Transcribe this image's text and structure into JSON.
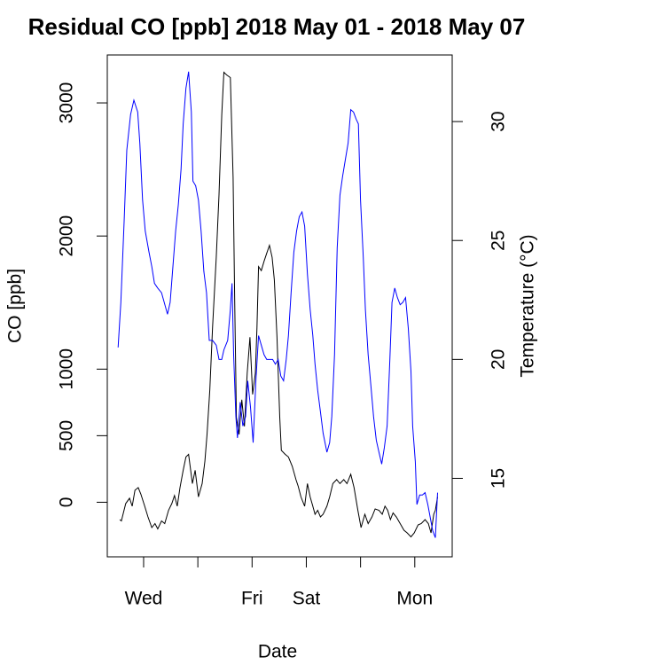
{
  "chart_data": {
    "type": "line",
    "title": "Residual CO [ppb] 2018 May 01 - 2018 May 07",
    "xlabel": "Date",
    "ylabel": "CO [ppb]",
    "y2label": "Temperature (°C)",
    "xlim": [
      1.33,
      7.69
    ],
    "xticks": [
      {
        "value": 2,
        "label": "Wed"
      },
      {
        "value": 3,
        "label": null
      },
      {
        "value": 4,
        "label": "Fri"
      },
      {
        "value": 5,
        "label": "Sat"
      },
      {
        "value": 6,
        "label": null
      },
      {
        "value": 7,
        "label": "Mon"
      }
    ],
    "ylim": [
      -410,
      3360
    ],
    "yticks": [
      0,
      500,
      1000,
      2000,
      3000
    ],
    "y2lim": [
      11.7,
      32.8
    ],
    "y2ticks": [
      15,
      20,
      25,
      30
    ],
    "y2color": "#0000ff",
    "series": [
      {
        "color": "#000000",
        "x": [
          1.56,
          1.59,
          1.67,
          1.74,
          1.79,
          1.84,
          1.9,
          1.95,
          2.02,
          2.08,
          2.15,
          2.21,
          2.26,
          2.33,
          2.39,
          2.46,
          2.52,
          2.57,
          2.62,
          2.67,
          2.73,
          2.78,
          2.83,
          2.9,
          2.95,
          3.01,
          3.08,
          3.13,
          3.17,
          3.22,
          3.27,
          3.34,
          3.39,
          3.44,
          3.48,
          3.53,
          3.6,
          3.65,
          3.68,
          3.71,
          3.76,
          3.81,
          3.86,
          3.91,
          3.96,
          4.01,
          4.06,
          4.09,
          4.12,
          4.17,
          4.22,
          4.27,
          4.32,
          4.37,
          4.41,
          4.46,
          4.51,
          4.54,
          4.61,
          4.67,
          4.74,
          4.81,
          4.85,
          4.9,
          4.97,
          5.02,
          5.07,
          5.12,
          5.16,
          5.21,
          5.26,
          5.31,
          5.38,
          5.43,
          5.49,
          5.56,
          5.62,
          5.69,
          5.75,
          5.82,
          5.88,
          5.95,
          6.01,
          6.08,
          6.14,
          6.21,
          6.27,
          6.34,
          6.4,
          6.45,
          6.5,
          6.55,
          6.6,
          6.66,
          6.73,
          6.8,
          6.86,
          6.93,
          6.99,
          7.06,
          7.12,
          7.19,
          7.25,
          7.3,
          7.35,
          7.38,
          7.42
        ],
        "values": [
          -130,
          -140,
          -10,
          30,
          -30,
          90,
          110,
          60,
          -30,
          -110,
          -190,
          -160,
          -200,
          -140,
          -160,
          -60,
          -10,
          50,
          -30,
          110,
          240,
          340,
          360,
          140,
          240,
          40,
          140,
          310,
          510,
          840,
          1310,
          1840,
          2310,
          2910,
          3230,
          3210,
          3190,
          2440,
          1510,
          640,
          510,
          770,
          570,
          970,
          1240,
          810,
          970,
          1310,
          1770,
          1740,
          1810,
          1870,
          1930,
          1840,
          1670,
          1240,
          640,
          390,
          360,
          340,
          270,
          170,
          120,
          40,
          -30,
          140,
          40,
          -30,
          -90,
          -60,
          -110,
          -90,
          -30,
          40,
          140,
          170,
          140,
          170,
          140,
          210,
          110,
          -60,
          -190,
          -90,
          -160,
          -110,
          -50,
          -60,
          -90,
          -30,
          -60,
          -130,
          -80,
          -110,
          -160,
          -210,
          -230,
          -260,
          -230,
          -170,
          -160,
          -130,
          -160,
          -230,
          -90,
          -60,
          40
        ]
      },
      {
        "color": "#0000ff",
        "axis": "y2",
        "x": [
          1.53,
          1.58,
          1.64,
          1.69,
          1.76,
          1.82,
          1.89,
          1.93,
          1.98,
          2.03,
          2.1,
          2.15,
          2.2,
          2.26,
          2.33,
          2.38,
          2.44,
          2.49,
          2.54,
          2.59,
          2.64,
          2.69,
          2.73,
          2.78,
          2.83,
          2.88,
          2.91,
          2.96,
          3.01,
          3.06,
          3.11,
          3.16,
          3.21,
          3.27,
          3.34,
          3.39,
          3.44,
          3.48,
          3.55,
          3.6,
          3.63,
          3.66,
          3.7,
          3.73,
          3.78,
          3.83,
          3.88,
          3.92,
          3.97,
          4.02,
          4.07,
          4.12,
          4.17,
          4.22,
          4.27,
          4.32,
          4.38,
          4.43,
          4.48,
          4.53,
          4.58,
          4.63,
          4.67,
          4.72,
          4.77,
          4.82,
          4.87,
          4.92,
          4.97,
          5.02,
          5.07,
          5.12,
          5.16,
          5.21,
          5.26,
          5.31,
          5.38,
          5.43,
          5.47,
          5.52,
          5.57,
          5.62,
          5.67,
          5.72,
          5.77,
          5.82,
          5.87,
          5.92,
          5.96,
          6.0,
          6.05,
          6.09,
          6.14,
          6.19,
          6.24,
          6.29,
          6.34,
          6.39,
          6.44,
          6.49,
          6.54,
          6.58,
          6.63,
          6.68,
          6.73,
          6.78,
          6.83,
          6.88,
          6.93,
          6.96,
          7.01,
          7.04,
          7.09,
          7.14,
          7.19,
          7.24,
          7.29,
          7.33,
          7.38,
          7.42
        ],
        "values": [
          20.5,
          22.4,
          25.8,
          28.8,
          30.3,
          30.9,
          30.4,
          29.1,
          26.7,
          25.4,
          24.5,
          23.9,
          23.2,
          23.0,
          22.8,
          22.4,
          21.9,
          22.4,
          23.9,
          25.4,
          26.5,
          28.0,
          29.9,
          31.4,
          32.1,
          30.4,
          27.5,
          27.3,
          26.7,
          25.4,
          23.7,
          22.8,
          20.8,
          20.8,
          20.6,
          20.0,
          20.0,
          20.4,
          20.8,
          22.1,
          23.2,
          20.2,
          17.6,
          16.7,
          18.2,
          17.2,
          17.6,
          19.1,
          18.0,
          16.5,
          19.1,
          21.0,
          20.6,
          20.2,
          20.0,
          20.0,
          20.0,
          19.8,
          20.0,
          19.3,
          19.1,
          20.0,
          21.0,
          22.8,
          24.5,
          25.4,
          26.0,
          26.2,
          25.6,
          23.6,
          22.1,
          21.0,
          19.8,
          18.7,
          17.8,
          16.9,
          16.1,
          16.5,
          17.6,
          20.2,
          24.7,
          26.9,
          27.7,
          28.4,
          29.1,
          30.5,
          30.4,
          30.1,
          29.9,
          26.7,
          24.3,
          22.1,
          20.2,
          18.9,
          17.6,
          16.6,
          16.1,
          15.6,
          16.3,
          17.2,
          20.0,
          22.4,
          23.0,
          22.6,
          22.3,
          22.4,
          22.6,
          21.3,
          19.5,
          17.2,
          15.7,
          13.9,
          14.3,
          14.3,
          14.4,
          13.9,
          13.3,
          12.8,
          12.5,
          14.4
        ]
      }
    ]
  }
}
